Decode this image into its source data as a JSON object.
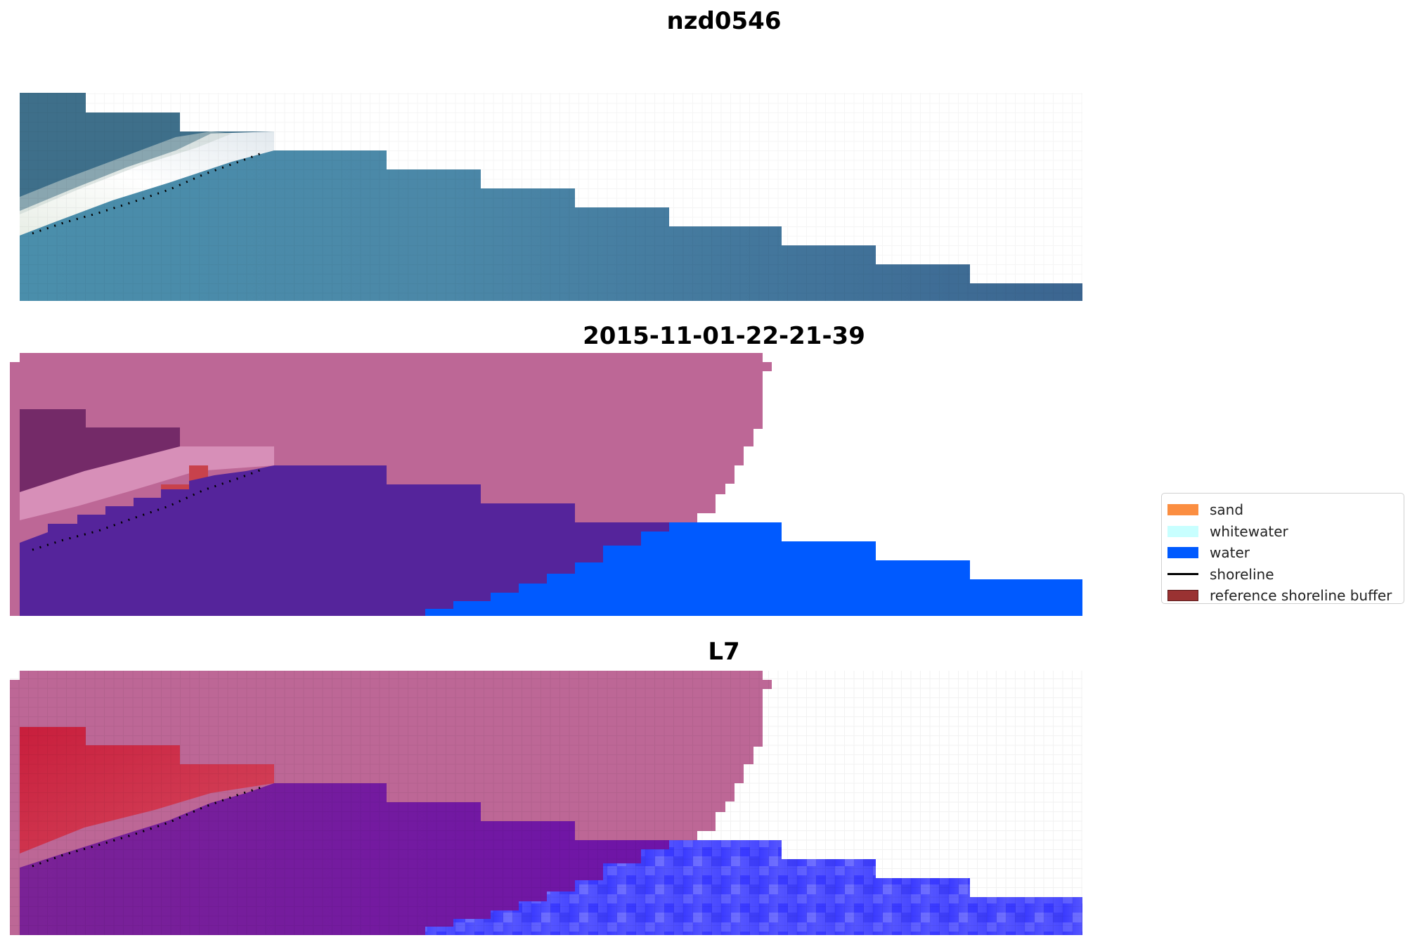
{
  "panels": [
    {
      "title": "nzd0546"
    },
    {
      "title": "2015-11-01-22-21-39"
    },
    {
      "title": "L7"
    }
  ],
  "legend": {
    "items": [
      {
        "label": "sand",
        "color": "#fb8e41"
      },
      {
        "label": "whitewater",
        "color": "#c8ffff"
      },
      {
        "label": "water",
        "color": "#005aff"
      },
      {
        "label": "shoreline",
        "color": "#000000"
      },
      {
        "label": "reference shoreline buffer",
        "color": "#9a3232"
      }
    ]
  },
  "colors": {
    "rgb_water": "#3f7294",
    "rgb_water_light": "#4f8ea8",
    "rgb_whitewater": "#f0f4f0",
    "buffer_mask": "#bd6796",
    "class_water": "#005aff",
    "class_water_in_buffer": "#55249b",
    "class_white_in_buffer": "#d78fb8",
    "class_dark_in_buffer": "#742a68",
    "mndwi_red": "#c8153c",
    "mndwi_purple": "#7a1e9e",
    "mndwi_blue": "#4a45ff"
  }
}
